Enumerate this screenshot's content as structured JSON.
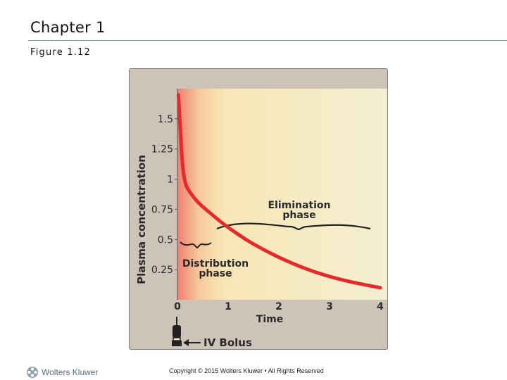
{
  "slide": {
    "title": "Chapter 1",
    "figure_label": "Figure 1.12"
  },
  "chart_data": {
    "type": "line",
    "title": "",
    "xlabel": "Time",
    "ylabel": "Plasma concentration",
    "x_ticks": [
      "0",
      "1",
      "2",
      "3",
      "4"
    ],
    "y_ticks": [
      "0.25",
      "0.5",
      "0.75",
      "1",
      "1.25",
      "1.5"
    ],
    "xlim": [
      0,
      4
    ],
    "ylim": [
      0,
      1.75
    ],
    "grid": false,
    "series": [
      {
        "name": "",
        "color": "#e32b2b",
        "x": [
          0.02,
          0.05,
          0.1,
          0.15,
          0.2,
          0.3,
          0.4,
          0.5,
          0.7,
          0.9,
          1.2,
          1.5,
          2.0,
          2.5,
          3.0,
          3.5,
          4.0
        ],
        "y": [
          1.7,
          1.45,
          1.1,
          0.97,
          0.92,
          0.86,
          0.81,
          0.77,
          0.7,
          0.63,
          0.54,
          0.46,
          0.35,
          0.26,
          0.19,
          0.14,
          0.1
        ]
      }
    ],
    "annotations": {
      "elimination": {
        "line1": "Elimination",
        "line2": "phase"
      },
      "distribution": {
        "line1": "Distribution",
        "line2": "phase"
      },
      "bolus": "IV Bolus"
    },
    "colors": {
      "background": "#cdc3b8",
      "gradient_start": "#f08a7a",
      "gradient_mid": "#f7e3b2",
      "gradient_end": "#f4efd2",
      "curve": "#e32b2b"
    }
  },
  "footer": {
    "logo_text": "Wolters Kluwer",
    "copyright": "Copyright © 2015 Wolters Kluwer • All Rights Reserved"
  }
}
